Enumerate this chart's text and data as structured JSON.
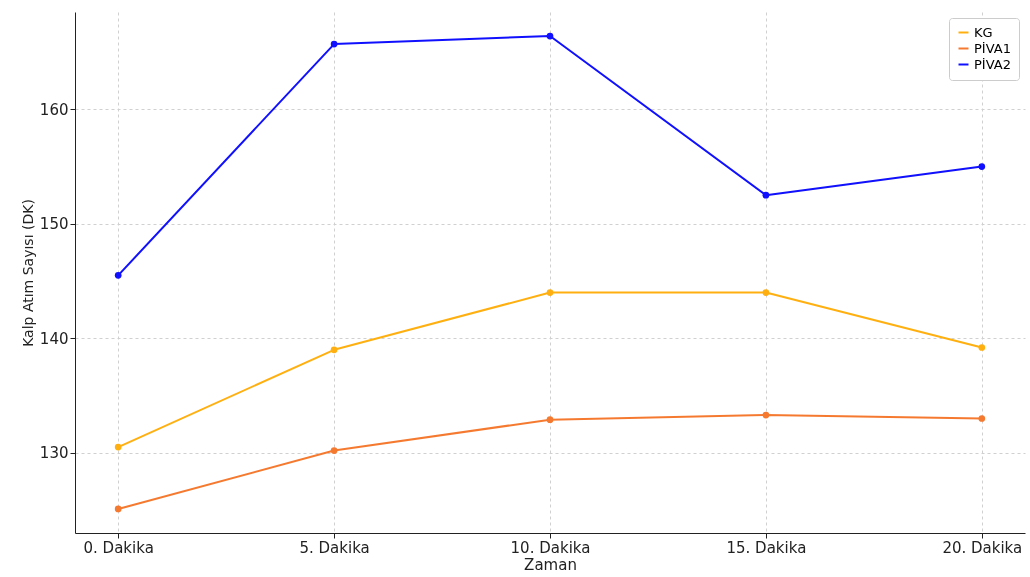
{
  "chart_data": {
    "type": "line",
    "xlabel": "Zaman",
    "ylabel": "Kalp Atım Sayısı (DK)",
    "categories": [
      "0. Dakika",
      "5. Dakika",
      "10. Dakika",
      "15. Dakika",
      "20. Dakika"
    ],
    "series": [
      {
        "name": "KG",
        "color": "#ffb010",
        "values": [
          130.5,
          139.0,
          144.0,
          144.0,
          139.2
        ]
      },
      {
        "name": "PİVA1",
        "color": "#f57a30",
        "values": [
          125.1,
          130.2,
          132.9,
          133.3,
          133.0
        ]
      },
      {
        "name": "PİVA2",
        "color": "#1010ff",
        "values": [
          145.5,
          165.7,
          166.4,
          152.5,
          155.0
        ]
      }
    ],
    "ylim": [
      123,
      168.5
    ],
    "yticks": [
      130,
      140,
      150,
      160
    ],
    "grid": true,
    "legend": "top right",
    "marker": "circle",
    "line_style": "solid"
  }
}
